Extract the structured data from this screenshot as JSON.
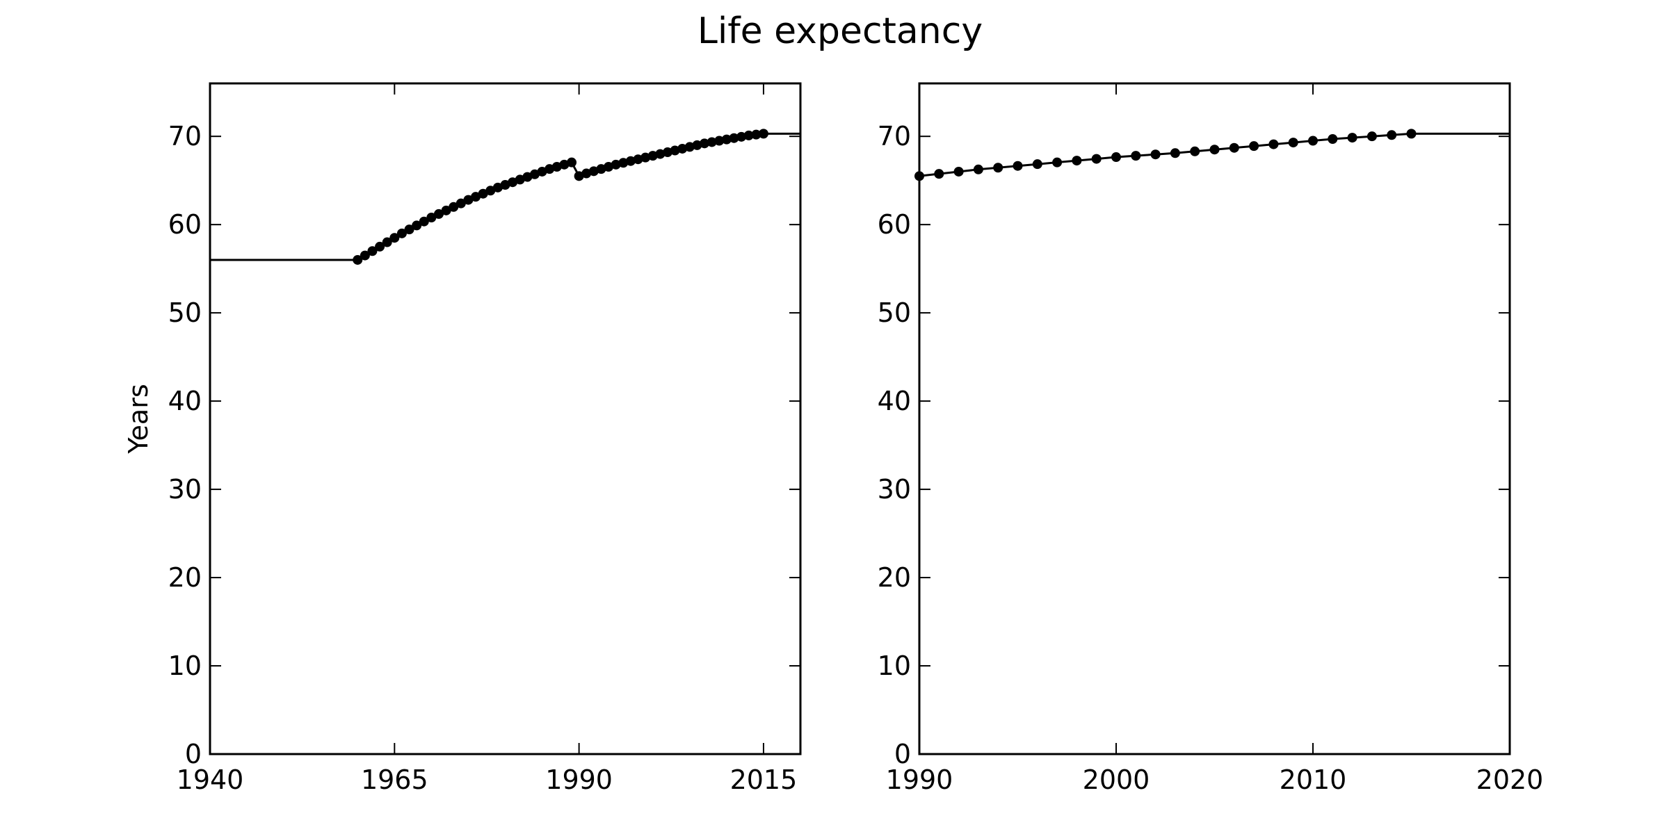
{
  "title": "Life expectancy",
  "chart_data": [
    {
      "type": "line",
      "title": "",
      "xlabel": "",
      "ylabel": "Years",
      "xlim": [
        1940,
        2020
      ],
      "ylim": [
        0,
        76
      ],
      "xticks": [
        1940,
        1965,
        1990,
        2015
      ],
      "yticks": [
        0,
        10,
        20,
        30,
        40,
        50,
        60,
        70
      ],
      "grid": false,
      "legend": null,
      "color": "#000000",
      "marker": "circle",
      "series": [
        {
          "x": [
            1960,
            1961,
            1962,
            1963,
            1964,
            1965,
            1966,
            1967,
            1968,
            1969,
            1970,
            1971,
            1972,
            1973,
            1974,
            1975,
            1976,
            1977,
            1978,
            1979,
            1980,
            1981,
            1982,
            1983,
            1984,
            1985,
            1986,
            1987,
            1988,
            1989,
            1990,
            1991,
            1992,
            1993,
            1994,
            1995,
            1996,
            1997,
            1998,
            1999,
            2000,
            2001,
            2002,
            2003,
            2004,
            2005,
            2006,
            2007,
            2008,
            2009,
            2010,
            2011,
            2012,
            2013,
            2014,
            2015
          ],
          "y": [
            56.0,
            56.5,
            57.0,
            57.5,
            58.0,
            58.5,
            59.0,
            59.45,
            59.9,
            60.35,
            60.8,
            61.2,
            61.6,
            62.0,
            62.4,
            62.8,
            63.15,
            63.5,
            63.85,
            64.2,
            64.5,
            64.8,
            65.1,
            65.4,
            65.7,
            66.0,
            66.3,
            66.55,
            66.8,
            67.05,
            65.5,
            65.8,
            66.05,
            66.3,
            66.55,
            66.8,
            67.0,
            67.2,
            67.4,
            67.6,
            67.8,
            68.0,
            68.2,
            68.4,
            68.6,
            68.8,
            69.0,
            69.2,
            69.35,
            69.5,
            69.65,
            69.8,
            69.95,
            70.1,
            70.2,
            70.3
          ]
        }
      ],
      "constant_before": {
        "x": [
          1940,
          1960
        ],
        "y": 56.0
      },
      "constant_after": {
        "x": [
          2015,
          2020
        ],
        "y": 70.3
      }
    },
    {
      "type": "line",
      "title": "",
      "xlabel": "",
      "ylabel": "",
      "xlim": [
        1990,
        2020
      ],
      "ylim": [
        0,
        76
      ],
      "xticks": [
        1990,
        2000,
        2010,
        2020
      ],
      "yticks": [
        0,
        10,
        20,
        30,
        40,
        50,
        60,
        70
      ],
      "grid": false,
      "legend": null,
      "color": "#000000",
      "marker": "circle",
      "series": [
        {
          "x": [
            1990,
            1991,
            1992,
            1993,
            1994,
            1995,
            1996,
            1997,
            1998,
            1999,
            2000,
            2001,
            2002,
            2003,
            2004,
            2005,
            2006,
            2007,
            2008,
            2009,
            2010,
            2011,
            2012,
            2013,
            2014,
            2015
          ],
          "y": [
            65.5,
            65.75,
            66.0,
            66.25,
            66.45,
            66.65,
            66.85,
            67.05,
            67.25,
            67.45,
            67.65,
            67.8,
            67.95,
            68.1,
            68.3,
            68.5,
            68.7,
            68.9,
            69.1,
            69.3,
            69.5,
            69.7,
            69.85,
            70.0,
            70.15,
            70.3
          ]
        }
      ],
      "constant_after": {
        "x": [
          2015,
          2020
        ],
        "y": 70.3
      }
    }
  ]
}
